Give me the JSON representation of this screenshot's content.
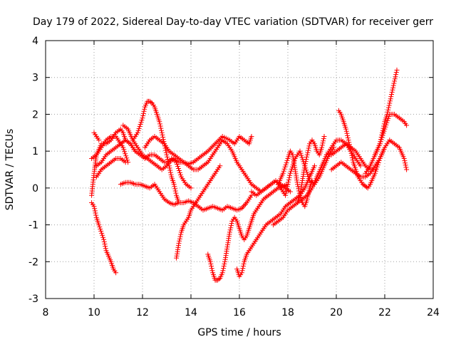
{
  "chart_data": {
    "type": "scatter",
    "title": "Day 179 of 2022, Sidereal Day-to-day VTEC variation (SDTVAR) for receiver gerr",
    "xlabel": "GPS time / hours",
    "ylabel": "SDTVAR / TECUs",
    "xlim": [
      8,
      24
    ],
    "ylim": [
      -3,
      4
    ],
    "x_ticks": [
      8,
      10,
      12,
      14,
      16,
      18,
      20,
      22,
      24
    ],
    "y_ticks": [
      -3,
      -2,
      -1,
      0,
      1,
      2,
      3,
      4
    ],
    "x_tick_labels": [
      "8",
      "10",
      "12",
      "14",
      "16",
      "18",
      "20",
      "22",
      "24"
    ],
    "y_tick_labels": [
      "-3",
      "-2",
      "-1",
      "0",
      "1",
      "2",
      "3",
      "4"
    ],
    "grid": true,
    "marker": "+",
    "color": "#ff0000",
    "series": [
      {
        "name": "track-01",
        "x": [
          9.9,
          10.0,
          10.1,
          10.2,
          10.4,
          10.5,
          10.7,
          10.8,
          10.9
        ],
        "y": [
          -0.4,
          -0.5,
          -0.8,
          -1.0,
          -1.4,
          -1.7,
          -2.0,
          -2.2,
          -2.3
        ]
      },
      {
        "name": "track-02",
        "x": [
          9.9,
          10.0,
          10.1,
          10.3,
          10.5,
          10.7,
          10.9,
          11.1,
          11.2,
          11.3,
          11.5,
          11.7
        ],
        "y": [
          -0.2,
          0.4,
          0.9,
          1.2,
          1.2,
          1.3,
          1.5,
          1.6,
          1.5,
          1.3,
          1.2,
          1.0
        ]
      },
      {
        "name": "track-03",
        "x": [
          10.0,
          10.1,
          10.2
        ],
        "y": [
          1.5,
          1.4,
          1.3
        ]
      },
      {
        "name": "track-04",
        "x": [
          9.9,
          10.1,
          10.3,
          10.5,
          10.7,
          10.9,
          11.0,
          11.2,
          11.4
        ],
        "y": [
          0.8,
          0.9,
          1.1,
          1.3,
          1.4,
          1.4,
          1.3,
          1.1,
          0.7
        ]
      },
      {
        "name": "track-05",
        "x": [
          10.1,
          10.3,
          10.5,
          10.7,
          10.9,
          11.1,
          11.3,
          11.5,
          11.7,
          11.9,
          12.1,
          12.3,
          12.5,
          12.7,
          12.9,
          13.1,
          13.3,
          13.5,
          13.7,
          13.9,
          14.1,
          14.3,
          14.5,
          14.7,
          15.0,
          15.3,
          15.6,
          15.8,
          16.0,
          16.2,
          16.4,
          16.5
        ],
        "y": [
          0.6,
          0.7,
          0.9,
          1.0,
          1.1,
          1.2,
          1.3,
          1.2,
          1.0,
          0.9,
          0.8,
          0.9,
          0.9,
          0.8,
          0.7,
          0.7,
          0.8,
          0.7,
          0.7,
          0.65,
          0.7,
          0.8,
          0.9,
          1.0,
          1.2,
          1.4,
          1.3,
          1.2,
          1.4,
          1.3,
          1.2,
          1.4
        ]
      },
      {
        "name": "track-06",
        "x": [
          10.1,
          10.3,
          10.5,
          10.7,
          10.9,
          11.1,
          11.3
        ],
        "y": [
          0.3,
          0.5,
          0.6,
          0.7,
          0.8,
          0.8,
          0.7
        ]
      },
      {
        "name": "track-07",
        "x": [
          11.2,
          11.4,
          11.6,
          11.8,
          12.0,
          12.2,
          12.4,
          12.6,
          12.8,
          13.0,
          13.2,
          13.4,
          13.6,
          13.8,
          14.0
        ],
        "y": [
          1.7,
          1.6,
          1.3,
          1.1,
          0.9,
          0.8,
          0.7,
          0.6,
          0.5,
          0.6,
          0.8,
          0.7,
          0.3,
          0.1,
          0.0
        ]
      },
      {
        "name": "track-08",
        "x": [
          11.6,
          11.8,
          12.0,
          12.1,
          12.2,
          12.3,
          12.4,
          12.5,
          12.6,
          12.7,
          12.8,
          12.9,
          13.0,
          13.1,
          13.2,
          13.3,
          13.4,
          13.5
        ],
        "y": [
          1.3,
          1.5,
          1.9,
          2.2,
          2.35,
          2.35,
          2.3,
          2.2,
          2.0,
          1.8,
          1.5,
          1.2,
          0.9,
          0.6,
          0.3,
          0.1,
          -0.2,
          -0.4
        ]
      },
      {
        "name": "track-09",
        "x": [
          11.1,
          11.3,
          11.5,
          11.7,
          11.9,
          12.1,
          12.3,
          12.5,
          12.7,
          12.9,
          13.1,
          13.3,
          13.5,
          13.7,
          13.9,
          14.1,
          14.3,
          14.5,
          14.7,
          14.9,
          15.1,
          15.3,
          15.5,
          15.7,
          15.9,
          16.1,
          16.3,
          16.5
        ],
        "y": [
          0.1,
          0.15,
          0.15,
          0.1,
          0.1,
          0.05,
          0.0,
          0.1,
          -0.1,
          -0.3,
          -0.4,
          -0.45,
          -0.4,
          -0.4,
          -0.35,
          -0.4,
          -0.5,
          -0.6,
          -0.55,
          -0.5,
          -0.55,
          -0.6,
          -0.5,
          -0.55,
          -0.6,
          -0.55,
          -0.4,
          -0.2
        ]
      },
      {
        "name": "track-10",
        "x": [
          12.1,
          12.3,
          12.5,
          12.7,
          12.9,
          13.1,
          13.3,
          13.5,
          13.7,
          13.9,
          14.1,
          14.3,
          14.5,
          14.7,
          14.9,
          15.1,
          15.3,
          15.5,
          15.7,
          15.9,
          16.1,
          16.3,
          16.5,
          16.7,
          16.9,
          17.1,
          17.3,
          17.5,
          17.7,
          17.9,
          18.1
        ],
        "y": [
          1.1,
          1.3,
          1.4,
          1.3,
          1.2,
          1.0,
          0.9,
          0.8,
          0.7,
          0.6,
          0.5,
          0.5,
          0.6,
          0.7,
          0.9,
          1.1,
          1.3,
          1.2,
          1.0,
          0.7,
          0.5,
          0.3,
          0.1,
          0.0,
          -0.1,
          0.0,
          0.1,
          0.2,
          0.1,
          0.0,
          -0.1
        ]
      },
      {
        "name": "track-11",
        "x": [
          13.4,
          13.5,
          13.6,
          13.7,
          13.8,
          13.9,
          14.0,
          14.2,
          14.4,
          14.6,
          14.8,
          15.0,
          15.2
        ],
        "y": [
          -1.9,
          -1.5,
          -1.2,
          -1.0,
          -0.9,
          -0.8,
          -0.6,
          -0.4,
          -0.2,
          0.0,
          0.2,
          0.4,
          0.6
        ]
      },
      {
        "name": "track-12",
        "x": [
          14.7,
          14.8,
          14.9,
          15.0,
          15.1,
          15.2,
          15.3,
          15.4,
          15.5,
          15.6,
          15.7,
          15.8,
          15.9,
          16.0,
          16.1,
          16.2,
          16.3,
          16.4,
          16.5,
          16.6,
          16.8,
          17.0,
          17.2,
          17.4,
          17.6,
          17.8,
          18.0
        ],
        "y": [
          -1.8,
          -2.0,
          -2.3,
          -2.5,
          -2.5,
          -2.45,
          -2.3,
          -2.0,
          -1.6,
          -1.2,
          -0.9,
          -0.8,
          -0.9,
          -1.1,
          -1.3,
          -1.4,
          -1.3,
          -1.1,
          -0.9,
          -0.7,
          -0.5,
          -0.3,
          -0.2,
          -0.1,
          0.0,
          0.05,
          0.1
        ]
      },
      {
        "name": "track-13",
        "x": [
          15.9,
          16.0,
          16.1,
          16.2,
          16.3,
          16.5,
          16.7,
          16.9,
          17.1,
          17.3,
          17.5,
          17.7,
          17.9,
          18.1,
          18.3,
          18.5,
          18.7,
          18.9,
          19.1
        ],
        "y": [
          -2.2,
          -2.4,
          -2.3,
          -2.0,
          -1.8,
          -1.6,
          -1.4,
          -1.2,
          -1.0,
          -0.9,
          -0.8,
          -0.7,
          -0.5,
          -0.4,
          -0.3,
          -0.2,
          0.0,
          0.3,
          0.6
        ]
      },
      {
        "name": "track-14",
        "x": [
          17.4,
          17.6,
          17.8,
          18.0,
          18.2,
          18.4,
          18.6,
          18.8,
          19.0,
          19.2,
          19.4,
          19.6,
          19.8,
          20.0,
          20.2,
          20.4,
          20.6,
          20.8,
          21.0
        ],
        "y": [
          -1.0,
          -0.9,
          -0.8,
          -0.6,
          -0.5,
          -0.4,
          -0.3,
          -0.2,
          0.0,
          0.3,
          0.6,
          0.9,
          1.1,
          1.3,
          1.3,
          1.2,
          1.0,
          0.8,
          0.6
        ]
      },
      {
        "name": "track-15",
        "x": [
          16.5,
          16.7,
          16.9,
          17.1,
          17.3,
          17.5,
          17.7,
          17.9,
          18.1,
          18.3,
          18.5,
          18.7,
          18.9,
          19.1,
          19.3,
          19.5,
          19.7,
          19.9
        ],
        "y": [
          -0.1,
          -0.2,
          -0.1,
          0.0,
          0.1,
          0.2,
          0.0,
          -0.2,
          0.4,
          0.8,
          1.0,
          0.6,
          0.2,
          0.1,
          0.3,
          0.6,
          0.9,
          1.1
        ]
      },
      {
        "name": "track-16",
        "x": [
          17.6,
          17.8,
          18.0,
          18.1,
          18.2,
          18.3,
          18.4,
          18.5,
          18.6,
          18.7,
          18.8,
          18.9,
          19.0
        ],
        "y": [
          0.1,
          0.4,
          0.8,
          1.0,
          0.9,
          0.5,
          0.1,
          -0.2,
          -0.4,
          -0.5,
          -0.3,
          0.0,
          0.2
        ]
      },
      {
        "name": "track-17",
        "x": [
          18.4,
          18.5,
          18.6,
          18.7,
          18.8,
          18.9,
          19.0,
          19.1,
          19.2,
          19.3,
          19.4,
          19.5
        ],
        "y": [
          -0.4,
          -0.2,
          0.2,
          0.6,
          0.9,
          1.2,
          1.3,
          1.2,
          1.0,
          0.9,
          1.1,
          1.4
        ]
      },
      {
        "name": "track-18",
        "x": [
          19.6,
          19.8,
          20.0,
          20.2,
          20.4,
          20.6,
          20.8,
          21.0,
          21.2,
          21.4,
          21.6
        ],
        "y": [
          0.9,
          0.9,
          1.0,
          1.1,
          1.2,
          1.1,
          1.0,
          0.8,
          0.6,
          0.5,
          0.5
        ]
      },
      {
        "name": "track-19",
        "x": [
          20.1,
          20.2,
          20.3,
          20.4,
          20.5,
          20.6,
          20.7,
          20.8,
          20.9,
          21.0,
          21.1,
          21.2,
          21.3,
          21.4,
          21.6,
          21.8,
          22.0
        ],
        "y": [
          2.1,
          2.0,
          1.8,
          1.6,
          1.3,
          1.0,
          0.7,
          0.5,
          0.3,
          0.2,
          0.1,
          0.05,
          0.0,
          0.1,
          0.4,
          0.8,
          1.1
        ]
      },
      {
        "name": "track-20",
        "x": [
          19.8,
          20.0,
          20.2,
          20.4,
          20.6,
          20.8,
          21.0,
          21.2,
          21.4,
          21.6,
          21.8,
          22.0,
          22.2,
          22.4,
          22.6,
          22.8,
          22.9
        ],
        "y": [
          0.5,
          0.6,
          0.7,
          0.6,
          0.5,
          0.4,
          0.3,
          0.3,
          0.4,
          0.6,
          0.8,
          1.1,
          1.3,
          1.2,
          1.1,
          0.8,
          0.5
        ]
      },
      {
        "name": "track-21",
        "x": [
          21.2,
          21.4,
          21.6,
          21.8,
          21.9,
          22.0,
          22.1,
          22.2,
          22.3,
          22.4,
          22.5
        ],
        "y": [
          0.4,
          0.6,
          0.9,
          1.2,
          1.5,
          1.8,
          2.0,
          2.3,
          2.6,
          2.9,
          3.2
        ]
      },
      {
        "name": "track-22",
        "x": [
          21.6,
          21.8,
          22.0,
          22.2,
          22.4,
          22.6,
          22.8,
          22.9
        ],
        "y": [
          0.9,
          1.2,
          1.6,
          2.0,
          2.0,
          1.9,
          1.8,
          1.7
        ]
      }
    ]
  }
}
